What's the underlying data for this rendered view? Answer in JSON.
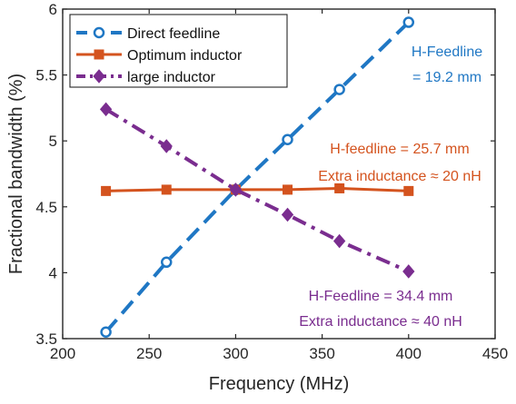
{
  "chart_data": {
    "type": "line",
    "title": "",
    "xlabel": "Frequency (MHz)",
    "ylabel": "Fractional bandwidth (%)",
    "xlim": [
      200,
      450
    ],
    "ylim": [
      3.5,
      6
    ],
    "xticks": [
      200,
      250,
      300,
      350,
      400,
      450
    ],
    "xtick_labels": [
      "200",
      "250",
      "300",
      "350",
      "400",
      "450"
    ],
    "yticks": [
      3.5,
      4,
      4.5,
      5,
      5.5,
      6
    ],
    "ytick_labels": [
      "3.5",
      "4",
      "4.5",
      "5",
      "5.5",
      "6"
    ],
    "grid": false,
    "legend_position": "top-left",
    "x": [
      225,
      260,
      300,
      330,
      360,
      400
    ],
    "series": [
      {
        "name": "Direct feedline",
        "values": [
          3.55,
          4.08,
          4.63,
          5.01,
          5.39,
          5.9
        ],
        "color": "#1f77c4",
        "line_style": "dashed",
        "marker": "circle"
      },
      {
        "name": "Optimum inductor",
        "values": [
          4.62,
          4.63,
          4.63,
          4.63,
          4.64,
          4.62
        ],
        "color": "#d4531e",
        "line_style": "solid",
        "marker": "square"
      },
      {
        "name": "large inductor",
        "values": [
          5.24,
          4.96,
          4.63,
          4.44,
          4.24,
          4.01
        ],
        "color": "#7a2d8f",
        "line_style": "dashdot",
        "marker": "diamond"
      }
    ],
    "annotations": [
      {
        "color": "#1f77c4",
        "lines": [
          "H-Feedline",
          "= 19.2 mm"
        ]
      },
      {
        "color": "#d4531e",
        "lines": [
          "H-feedline = 25.7 mm",
          "Extra inductance ≈ 20 nH"
        ]
      },
      {
        "color": "#7a2d8f",
        "lines": [
          "H-Feedline = 34.4 mm",
          "Extra inductance ≈ 40 nH"
        ]
      }
    ]
  }
}
